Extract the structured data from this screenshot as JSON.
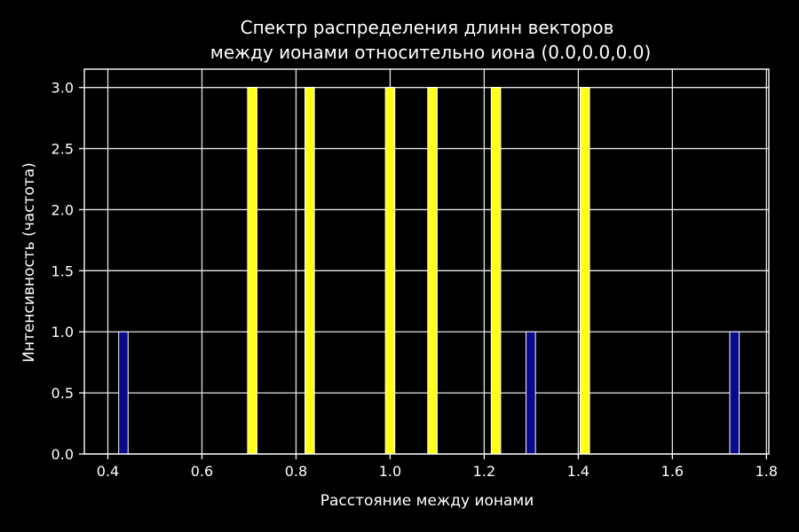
{
  "chart_data": {
    "type": "bar",
    "title_lines": [
      "Спектр распределения длинн векторов",
      "между ионами относительно иона (0.0,0.0,0.0)"
    ],
    "xlabel": "Расстояние между ионами",
    "ylabel": "Интенсивность (частота)",
    "xlim": [
      0.35,
      1.805
    ],
    "ylim": [
      0,
      3.15
    ],
    "xticks": [
      "0.4",
      "0.6",
      "0.8",
      "1.0",
      "1.2",
      "1.4",
      "1.6",
      "1.8"
    ],
    "yticks": [
      "0.0",
      "0.5",
      "1.0",
      "1.5",
      "2.0",
      "2.5",
      "3.0"
    ],
    "grid": true,
    "bars": [
      {
        "x": 0.433,
        "value": 1,
        "color": "#0a0a8c"
      },
      {
        "x": 0.707,
        "value": 3,
        "color": "#ffff1a"
      },
      {
        "x": 0.829,
        "value": 3,
        "color": "#ffff1a"
      },
      {
        "x": 1.0,
        "value": 3,
        "color": "#ffff1a"
      },
      {
        "x": 1.09,
        "value": 3,
        "color": "#ffff1a"
      },
      {
        "x": 1.225,
        "value": 3,
        "color": "#ffff1a"
      },
      {
        "x": 1.299,
        "value": 1,
        "color": "#0a0a8c"
      },
      {
        "x": 1.414,
        "value": 3,
        "color": "#ffff1a"
      },
      {
        "x": 1.732,
        "value": 1,
        "color": "#0a0a8c"
      }
    ],
    "bar_width": 0.02,
    "colors": {
      "background": "#000000",
      "axes": "#ffffff",
      "grid": "#e6e6e6",
      "bar_edge": "#ffffff"
    }
  }
}
